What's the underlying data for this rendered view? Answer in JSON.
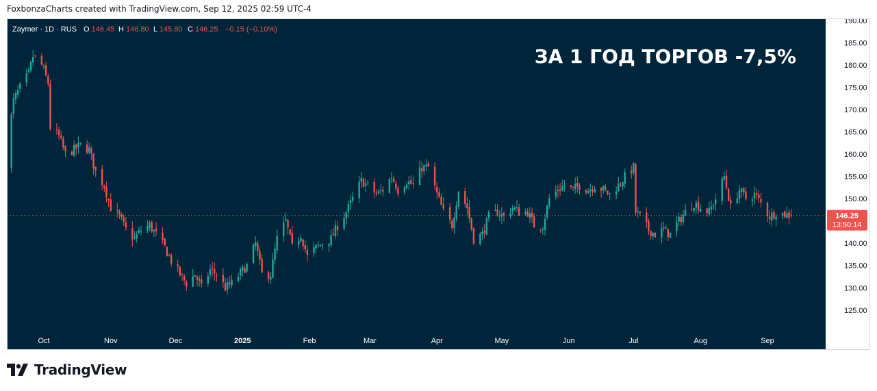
{
  "header": {
    "attribution": "FoxbonzaCharts created with TradingView.com, Sep 12, 2025 02:59 UTC-4"
  },
  "legend": {
    "symbol": "Zaymer · 1D · RUS",
    "o_label": "O",
    "o_value": "146.45",
    "h_label": "H",
    "h_value": "146.80",
    "l_label": "L",
    "l_value": "145.80",
    "c_label": "C",
    "c_value": "146.25",
    "change": "−0.15 (−0.10%)"
  },
  "annotation": "ЗА 1 ГОД ТОРГОВ -7,5%",
  "price_label": {
    "value": "146.25",
    "countdown": "13:50:14"
  },
  "branding": {
    "text": "TradingView",
    "icon": "tradingview-logo-icon"
  },
  "colors": {
    "background": "#002439",
    "up": "#26a69a",
    "down": "#ef5350",
    "axis_text": "#131722",
    "legend_text": "#ffffff",
    "annotation_text": "#ffffff",
    "price_line": "#ef5350"
  },
  "chart_data": {
    "type": "candlestick",
    "symbol": "Zaymer",
    "interval": "1D",
    "x_tick_labels": [
      "Oct",
      "Nov",
      "Dec",
      "2025",
      "Feb",
      "Mar",
      "Apr",
      "May",
      "Jun",
      "Jul",
      "Aug",
      "Sep"
    ],
    "y_tick_labels": [
      "190.00",
      "185.00",
      "180.00",
      "175.00",
      "170.00",
      "165.00",
      "160.00",
      "155.00",
      "150.00",
      "145.00",
      "140.00",
      "135.00",
      "130.00",
      "125.00"
    ],
    "ylim": [
      120.2,
      190.0
    ],
    "last_price": 146.25,
    "path": [
      [
        "2024-09-13",
        158
      ],
      [
        "2024-09-17",
        172
      ],
      [
        "2024-09-20",
        175
      ],
      [
        "2024-09-24",
        178
      ],
      [
        "2024-09-26",
        182
      ],
      [
        "2024-09-30",
        180
      ],
      [
        "2024-10-03",
        176
      ],
      [
        "2024-10-04",
        166
      ],
      [
        "2024-10-08",
        164
      ],
      [
        "2024-10-11",
        160
      ],
      [
        "2024-10-15",
        161
      ],
      [
        "2024-10-18",
        162
      ],
      [
        "2024-10-22",
        161
      ],
      [
        "2024-10-25",
        156
      ],
      [
        "2024-10-29",
        153
      ],
      [
        "2024-11-01",
        148
      ],
      [
        "2024-11-05",
        146
      ],
      [
        "2024-11-08",
        143
      ],
      [
        "2024-11-12",
        141
      ],
      [
        "2024-11-15",
        143
      ],
      [
        "2024-11-19",
        144
      ],
      [
        "2024-11-22",
        142
      ],
      [
        "2024-11-26",
        139
      ],
      [
        "2024-11-29",
        136
      ],
      [
        "2024-12-03",
        133
      ],
      [
        "2024-12-06",
        131
      ],
      [
        "2024-12-10",
        133
      ],
      [
        "2024-12-13",
        130
      ],
      [
        "2024-12-17",
        134
      ],
      [
        "2024-12-20",
        133
      ],
      [
        "2024-12-24",
        130
      ],
      [
        "2024-12-27",
        131
      ],
      [
        "2025-01-03",
        135
      ],
      [
        "2025-01-07",
        140
      ],
      [
        "2025-01-10",
        133
      ],
      [
        "2025-01-14",
        133
      ],
      [
        "2025-01-17",
        141
      ],
      [
        "2025-01-21",
        145
      ],
      [
        "2025-01-24",
        139
      ],
      [
        "2025-01-28",
        142
      ],
      [
        "2025-01-31",
        137
      ],
      [
        "2025-02-04",
        139
      ],
      [
        "2025-02-07",
        140
      ],
      [
        "2025-02-11",
        141
      ],
      [
        "2025-02-14",
        144
      ],
      [
        "2025-02-18",
        147
      ],
      [
        "2025-02-21",
        150
      ],
      [
        "2025-02-25",
        154
      ],
      [
        "2025-02-28",
        153
      ],
      [
        "2025-03-04",
        151
      ],
      [
        "2025-03-07",
        152
      ],
      [
        "2025-03-11",
        155
      ],
      [
        "2025-03-14",
        152
      ],
      [
        "2025-03-18",
        154
      ],
      [
        "2025-03-21",
        153
      ],
      [
        "2025-03-25",
        157
      ],
      [
        "2025-03-28",
        157
      ],
      [
        "2025-04-01",
        151
      ],
      [
        "2025-04-04",
        147
      ],
      [
        "2025-04-08",
        144
      ],
      [
        "2025-04-11",
        152
      ],
      [
        "2025-04-15",
        148
      ],
      [
        "2025-04-18",
        141
      ],
      [
        "2025-04-22",
        142
      ],
      [
        "2025-04-25",
        146
      ],
      [
        "2025-04-29",
        147
      ],
      [
        "2025-05-02",
        146
      ],
      [
        "2025-05-06",
        148
      ],
      [
        "2025-05-09",
        147
      ],
      [
        "2025-05-13",
        147
      ],
      [
        "2025-05-16",
        144
      ],
      [
        "2025-05-20",
        144
      ],
      [
        "2025-05-23",
        150
      ],
      [
        "2025-05-27",
        152
      ],
      [
        "2025-05-30",
        153
      ],
      [
        "2025-06-03",
        152
      ],
      [
        "2025-06-06",
        153
      ],
      [
        "2025-06-10",
        152
      ],
      [
        "2025-06-13",
        153
      ],
      [
        "2025-06-17",
        152
      ],
      [
        "2025-06-20",
        151
      ],
      [
        "2025-06-24",
        153
      ],
      [
        "2025-06-27",
        155
      ],
      [
        "2025-07-01",
        157
      ],
      [
        "2025-07-02",
        147
      ],
      [
        "2025-07-04",
        146
      ],
      [
        "2025-07-08",
        143
      ],
      [
        "2025-07-11",
        142
      ],
      [
        "2025-07-15",
        143
      ],
      [
        "2025-07-18",
        142
      ],
      [
        "2025-07-22",
        145
      ],
      [
        "2025-07-25",
        147
      ],
      [
        "2025-07-29",
        149
      ],
      [
        "2025-08-01",
        148
      ],
      [
        "2025-08-05",
        147
      ],
      [
        "2025-08-08",
        150
      ],
      [
        "2025-08-12",
        155
      ],
      [
        "2025-08-15",
        148
      ],
      [
        "2025-08-19",
        152
      ],
      [
        "2025-08-22",
        150
      ],
      [
        "2025-08-26",
        151
      ],
      [
        "2025-08-29",
        149
      ],
      [
        "2025-09-02",
        146
      ],
      [
        "2025-09-05",
        147
      ],
      [
        "2025-09-09",
        146.5
      ],
      [
        "2025-09-12",
        146.25
      ]
    ]
  }
}
